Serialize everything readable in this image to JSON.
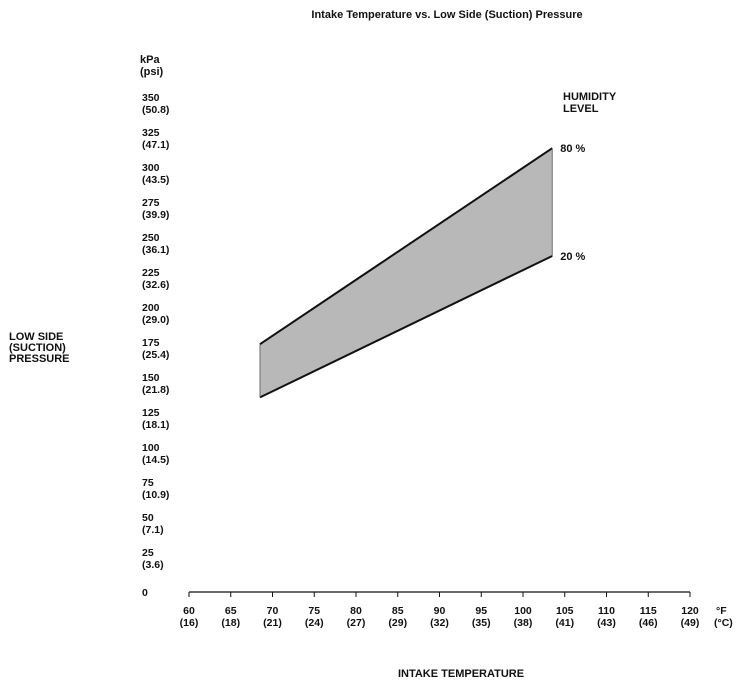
{
  "chart_data": {
    "type": "area",
    "title": "Intake Temperature vs. Low Side (Suction) Pressure",
    "xlabel": "INTAKE TEMPERATURE",
    "ylabel": [
      "LOW SIDE",
      "(SUCTION)",
      "PRESSURE"
    ],
    "y_unit": [
      "kPa",
      "(psi)"
    ],
    "x_unit": [
      "°F",
      "(°C)"
    ],
    "legend_title": [
      "HUMIDITY",
      "LEVEL"
    ],
    "xlim": [
      60,
      120
    ],
    "ylim": [
      0,
      350
    ],
    "x_ticks": [
      {
        "f": "60",
        "c": "(16)"
      },
      {
        "f": "65",
        "c": "(18)"
      },
      {
        "f": "70",
        "c": "(21)"
      },
      {
        "f": "75",
        "c": "(24)"
      },
      {
        "f": "80",
        "c": "(27)"
      },
      {
        "f": "85",
        "c": "(29)"
      },
      {
        "f": "90",
        "c": "(32)"
      },
      {
        "f": "95",
        "c": "(35)"
      },
      {
        "f": "100",
        "c": "(38)"
      },
      {
        "f": "105",
        "c": "(41)"
      },
      {
        "f": "110",
        "c": "(43)"
      },
      {
        "f": "115",
        "c": "(46)"
      },
      {
        "f": "120",
        "c": "(49)"
      }
    ],
    "y_ticks": [
      {
        "kpa": "0",
        "psi": ""
      },
      {
        "kpa": "25",
        "psi": "(3.6)"
      },
      {
        "kpa": "50",
        "psi": "(7.1)"
      },
      {
        "kpa": "75",
        "psi": "(10.9)"
      },
      {
        "kpa": "100",
        "psi": "(14.5)"
      },
      {
        "kpa": "125",
        "psi": "(18.1)"
      },
      {
        "kpa": "150",
        "psi": "(21.8)"
      },
      {
        "kpa": "175",
        "psi": "(25.4)"
      },
      {
        "kpa": "200",
        "psi": "(29.0)"
      },
      {
        "kpa": "225",
        "psi": "(32.6)"
      },
      {
        "kpa": "250",
        "psi": "(36.1)"
      },
      {
        "kpa": "275",
        "psi": "(39.9)"
      },
      {
        "kpa": "300",
        "psi": "(43.5)"
      },
      {
        "kpa": "325",
        "psi": "(47.1)"
      },
      {
        "kpa": "350",
        "psi": "(50.8)"
      }
    ],
    "series": [
      {
        "name": "80 %",
        "x": [
          68.5,
          103.5
        ],
        "y": [
          177,
          317
        ]
      },
      {
        "name": "20 %",
        "x": [
          68.5,
          103.5
        ],
        "y": [
          139,
          240
        ]
      }
    ],
    "fill_color": "#b8b8b8",
    "line_color": "#111111",
    "grid": false
  }
}
